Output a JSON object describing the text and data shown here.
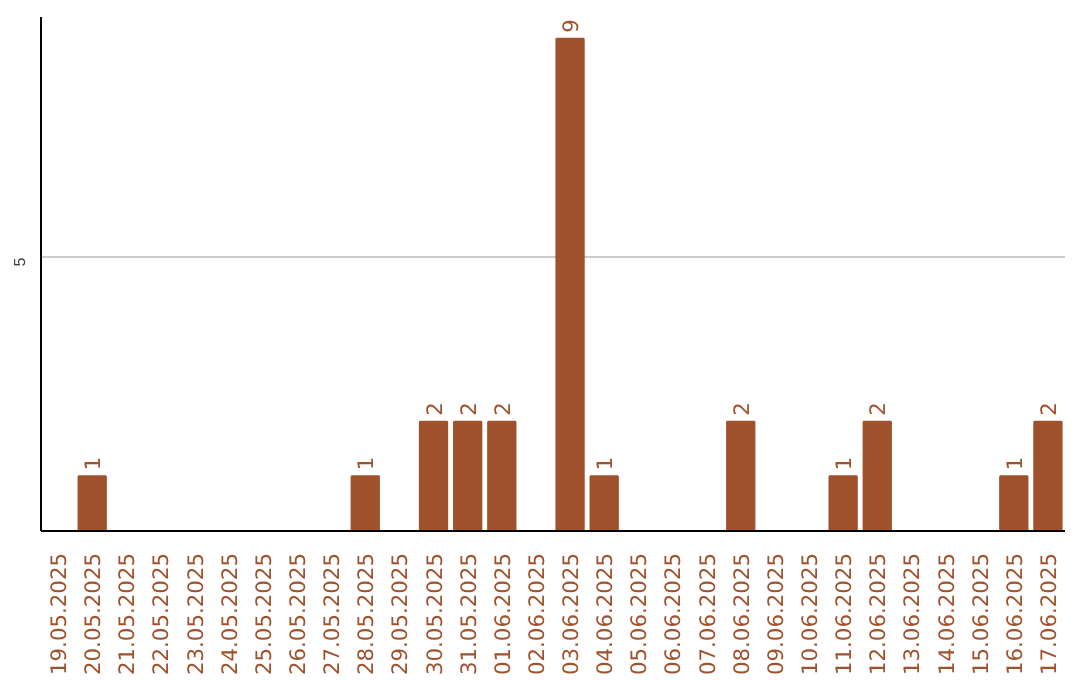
{
  "chart_data": {
    "type": "bar",
    "categories": [
      "19.05.2025",
      "20.05.2025",
      "21.05.2025",
      "22.05.2025",
      "23.05.2025",
      "24.05.2025",
      "25.05.2025",
      "26.05.2025",
      "27.05.2025",
      "28.05.2025",
      "29.05.2025",
      "30.05.2025",
      "31.05.2025",
      "01.06.2025",
      "02.06.2025",
      "03.06.2025",
      "04.06.2025",
      "05.06.2025",
      "06.06.2025",
      "07.06.2025",
      "08.06.2025",
      "09.06.2025",
      "10.06.2025",
      "11.06.2025",
      "12.06.2025",
      "13.06.2025",
      "14.06.2025",
      "15.06.2025",
      "16.06.2025",
      "17.06.2025"
    ],
    "values": [
      0,
      1,
      0,
      0,
      0,
      0,
      0,
      0,
      0,
      1,
      0,
      2,
      2,
      2,
      0,
      9,
      1,
      0,
      0,
      0,
      2,
      0,
      0,
      1,
      2,
      0,
      0,
      0,
      1,
      2
    ],
    "value_labels": [
      null,
      "1",
      null,
      null,
      null,
      null,
      null,
      null,
      null,
      "1",
      null,
      "2",
      "2",
      "2",
      null,
      "9",
      "1",
      null,
      null,
      null,
      "2",
      null,
      null,
      "1",
      "2",
      null,
      null,
      null,
      "1",
      "2"
    ],
    "color": "#a0522d",
    "ylim": [
      0,
      9.4
    ],
    "yticks": [
      5
    ],
    "grid": "y"
  }
}
